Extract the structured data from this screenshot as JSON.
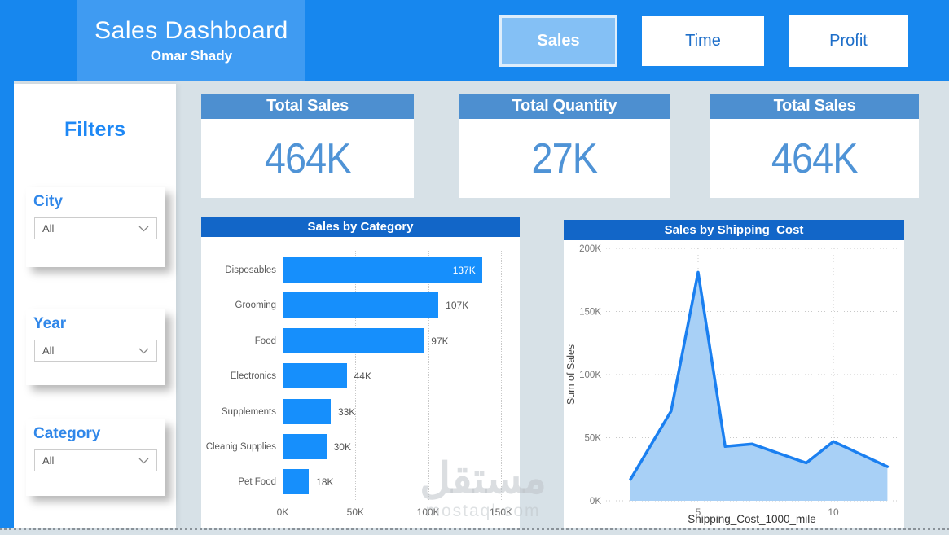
{
  "header": {
    "title": "Sales Dashboard",
    "subtitle": "Omar Shady",
    "nav": [
      {
        "label": "Sales",
        "active": true
      },
      {
        "label": "Time",
        "active": false
      },
      {
        "label": "Profit",
        "active": false
      }
    ]
  },
  "sidebar": {
    "title": "Filters",
    "filters": [
      {
        "label": "City",
        "value": "All"
      },
      {
        "label": "Year",
        "value": "All"
      },
      {
        "label": "Category",
        "value": "All"
      }
    ]
  },
  "kpis": [
    {
      "title": "Total Sales",
      "value": "464K"
    },
    {
      "title": "Total Quantity",
      "value": "27K"
    },
    {
      "title": "Total Sales",
      "value": "464K"
    }
  ],
  "chart_data": [
    {
      "type": "bar",
      "orientation": "horizontal",
      "title": "Sales by Category",
      "categories": [
        "Disposables",
        "Grooming",
        "Food",
        "Electronics",
        "Supplements",
        "Cleanig Supplies",
        "Pet Food"
      ],
      "values": [
        137,
        107,
        97,
        44,
        33,
        30,
        18
      ],
      "value_labels": [
        "137K",
        "107K",
        "97K",
        "44K",
        "33K",
        "30K",
        "18K"
      ],
      "xlim": [
        0,
        150
      ],
      "x_tick_values": [
        0,
        50,
        100,
        150
      ],
      "x_tick_labels": [
        "0K",
        "50K",
        "100K",
        "150K"
      ],
      "grid": "vertical-dotted",
      "bar_color": "#168ffc"
    },
    {
      "type": "area",
      "title": "Sales by Shipping_Cost",
      "xlabel": "Shipping_Cost_1000_mile",
      "ylabel": "Sum of Sales",
      "x": [
        2.5,
        4,
        5,
        6,
        7,
        9,
        10,
        12
      ],
      "y": [
        17000,
        71000,
        181000,
        43000,
        45000,
        30000,
        47000,
        27000
      ],
      "ylim": [
        0,
        200000
      ],
      "y_tick_values": [
        0,
        50000,
        100000,
        150000,
        200000
      ],
      "y_tick_labels": [
        "0K",
        "50K",
        "100K",
        "150K",
        "200K"
      ],
      "x_tick_values": [
        5,
        10
      ],
      "x_tick_labels": [
        "5",
        "10"
      ],
      "grid": "dotted",
      "line_color": "#1a7ff0",
      "fill_color": "#a8d0f6"
    }
  ],
  "watermark": {
    "arabic": "مستقل",
    "latin": "mostaql.com"
  },
  "colors": {
    "header_bg": "#1787ee",
    "title_panel_bg": "#3f9bf2",
    "active_button_bg": "#84c0f5",
    "page_bg": "#d7e1e7",
    "kpi_header_bg": "#4d8fd0",
    "kpi_value": "#4f93d6",
    "chart_title_bg": "#1266c8",
    "bar_fill": "#168ffc",
    "area_line": "#1a7ff0",
    "area_fill": "#a8d0f6",
    "accent_blue": "#1e88f5"
  }
}
